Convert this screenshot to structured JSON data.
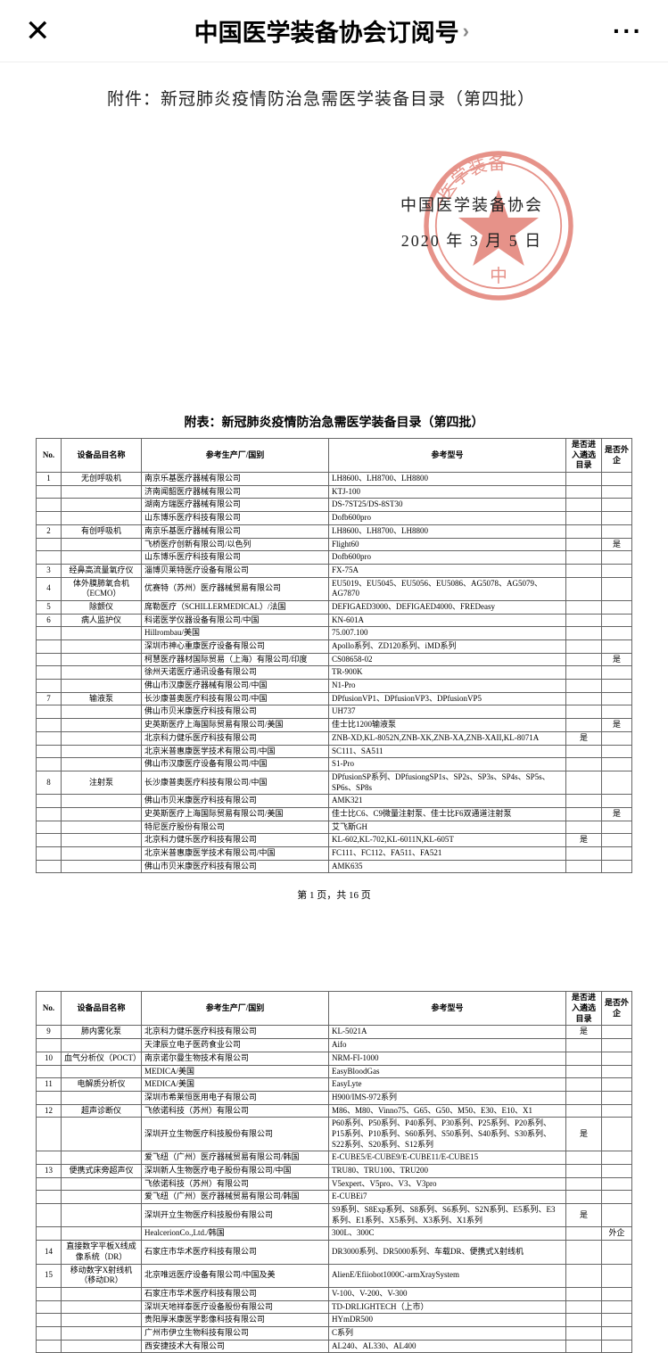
{
  "topbar": {
    "title": "中国医学装备协会订阅号"
  },
  "attachment": "附件：新冠肺炎疫情防治急需医学装备目录（第四批）",
  "stamp": {
    "org": "中国医学装备协会",
    "date": "2020 年 3 月 5 日",
    "ring_color": "#d33a2a",
    "star_color": "#d33a2a"
  },
  "table_title": "附表：新冠肺炎疫情防治急需医学装备目录（第四批）",
  "headers": {
    "no": "No.",
    "name": "设备品目名称",
    "mfr": "参考生产厂/国别",
    "model": "参考型号",
    "flag1": "是否进入遴选目录",
    "flag2": "是否外企"
  },
  "page_footer": "第 1 页，共 16 页",
  "table1_rows": [
    {
      "no": "1",
      "name": "无创呼吸机",
      "mfr": "南京乐基医疗器械有限公司",
      "model": "LH8600、LH8700、LH8800",
      "f1": "",
      "f2": ""
    },
    {
      "no": "",
      "name": "",
      "mfr": "济南闻韶医疗器械有限公司",
      "model": "KTJ-100",
      "f1": "",
      "f2": ""
    },
    {
      "no": "",
      "name": "",
      "mfr": "湖南方瑞医疗器械有限公司",
      "model": "DS-7ST25/DS-8ST30",
      "f1": "",
      "f2": ""
    },
    {
      "no": "",
      "name": "",
      "mfr": "山东博乐医疗科技有限公司",
      "model": "Dofb600pro",
      "f1": "",
      "f2": ""
    },
    {
      "no": "2",
      "name": "有创呼吸机",
      "mfr": "南京乐基医疗器械有限公司",
      "model": "LH8600、LH8700、LH8800",
      "f1": "",
      "f2": ""
    },
    {
      "no": "",
      "name": "",
      "mfr": "飞桥医疗创新有限公司/以色列",
      "model": "Flight60",
      "f1": "",
      "f2": "是"
    },
    {
      "no": "",
      "name": "",
      "mfr": "山东博乐医疗科技有限公司",
      "model": "Dofb600pro",
      "f1": "",
      "f2": ""
    },
    {
      "no": "3",
      "name": "经鼻高流量氧疗仪",
      "mfr": "淄博贝莱特医疗设备有限公司",
      "model": "FX-75A",
      "f1": "",
      "f2": ""
    },
    {
      "no": "4",
      "name": "体外膜肺氧合机（ECMO）",
      "mfr": "优赛特（苏州）医疗器械贸易有限公司",
      "model": "EU5019、EU5045、EU5056、EU5086、AG5078、AG5079、AG7870",
      "f1": "",
      "f2": ""
    },
    {
      "no": "5",
      "name": "除颤仪",
      "mfr": "席勒医疗（SCHILLERMEDICAL）/法国",
      "model": "DEFIGAED3000、DEFIGAED4000、FREDeasy",
      "f1": "",
      "f2": ""
    },
    {
      "no": "6",
      "name": "病人监护仪",
      "mfr": "科诺医学仪器设备有限公司/中国",
      "model": "KN-601A",
      "f1": "",
      "f2": ""
    },
    {
      "no": "",
      "name": "",
      "mfr": "Hillrombau/美国",
      "model": "75.007.100",
      "f1": "",
      "f2": ""
    },
    {
      "no": "",
      "name": "",
      "mfr": "深圳市神心重康医疗设备有限公司",
      "model": "Apollo系列、ZD120系列、iMD系列",
      "f1": "",
      "f2": ""
    },
    {
      "no": "",
      "name": "",
      "mfr": "柯慧医疗器材国际贸易（上海）有限公司/印度",
      "model": "CS08658-02",
      "f1": "",
      "f2": "是"
    },
    {
      "no": "",
      "name": "",
      "mfr": "徐州天诺医疗通讯设备有限公司",
      "model": "TR-900K",
      "f1": "",
      "f2": ""
    },
    {
      "no": "",
      "name": "",
      "mfr": "佛山市汉康医疗器械有限公司/中国",
      "model": "N1-Pro",
      "f1": "",
      "f2": ""
    },
    {
      "no": "7",
      "name": "输液泵",
      "mfr": "长沙康普奥医疗科技有限公司/中国",
      "model": "DPfusionVP1、DPfusionVP3、DPfusionVP5",
      "f1": "",
      "f2": ""
    },
    {
      "no": "",
      "name": "",
      "mfr": "佛山市贝米康医疗科技有限公司",
      "model": "UH737",
      "f1": "",
      "f2": ""
    },
    {
      "no": "",
      "name": "",
      "mfr": "史英斯医疗上海国际贸易有限公司/美国",
      "model": "佳士比1200输液泵",
      "f1": "",
      "f2": "是"
    },
    {
      "no": "",
      "name": "",
      "mfr": "北京科力健乐医疗科技有限公司",
      "model": "ZNB-XD,KL-8052N,ZNB-XK,ZNB-XA,ZNB-XAII,KL-8071A",
      "f1": "是",
      "f2": ""
    },
    {
      "no": "",
      "name": "",
      "mfr": "北京米普惠康医学技术有限公司/中国",
      "model": "SC111、SA511",
      "f1": "",
      "f2": ""
    },
    {
      "no": "",
      "name": "",
      "mfr": "佛山市汉康医疗设备有限公司/中国",
      "model": "S1-Pro",
      "f1": "",
      "f2": ""
    },
    {
      "no": "8",
      "name": "注射泵",
      "mfr": "长沙康普奥医疗科技有限公司/中国",
      "model": "DPfusionSP系列、DPfusiongSP1s、SP2s、SP3s、SP4s、SP5s、SP6s、SP8s",
      "f1": "",
      "f2": ""
    },
    {
      "no": "",
      "name": "",
      "mfr": "佛山市贝米康医疗科技有限公司",
      "model": "AMK321",
      "f1": "",
      "f2": ""
    },
    {
      "no": "",
      "name": "",
      "mfr": "史英斯医疗上海国际贸易有限公司/美国",
      "model": "佳士比C6、C9微量注射泵、佳士比F6双通道注射泵",
      "f1": "",
      "f2": "是"
    },
    {
      "no": "",
      "name": "",
      "mfr": "特尼医疗股份有限公司",
      "model": "艾飞斯GH",
      "f1": "",
      "f2": ""
    },
    {
      "no": "",
      "name": "",
      "mfr": "北京科力健乐医疗科技有限公司",
      "model": "KL-602,KL-702,KL-6011N,KL-605T",
      "f1": "是",
      "f2": ""
    },
    {
      "no": "",
      "name": "",
      "mfr": "北京米普惠康医学技术有限公司/中国",
      "model": "FC111、FC112、FA511、FA521",
      "f1": "",
      "f2": ""
    },
    {
      "no": "",
      "name": "",
      "mfr": "佛山市贝米康医疗科技有限公司",
      "model": "AMK635",
      "f1": "",
      "f2": ""
    }
  ],
  "table2_rows": [
    {
      "no": "9",
      "name": "肺内雾化泵",
      "mfr": "北京科力健乐医疗科技有限公司",
      "model": "KL-5021A",
      "f1": "是",
      "f2": ""
    },
    {
      "no": "",
      "name": "",
      "mfr": "天津辰立电子医药食业公司",
      "model": "Aifo",
      "f1": "",
      "f2": ""
    },
    {
      "no": "10",
      "name": "血气分析仪（POCT）",
      "mfr": "南京诺尔曼生物技术有限公司",
      "model": "NRM-FI-1000",
      "f1": "",
      "f2": ""
    },
    {
      "no": "",
      "name": "",
      "mfr": "MEDICA/美国",
      "model": "EasyBloodGas",
      "f1": "",
      "f2": ""
    },
    {
      "no": "11",
      "name": "电解质分析仪",
      "mfr": "MEDICA/美国",
      "model": "EasyLyte",
      "f1": "",
      "f2": ""
    },
    {
      "no": "",
      "name": "",
      "mfr": "深圳市希莱恒医用电子有限公司",
      "model": "H900/IMS-972系列",
      "f1": "",
      "f2": ""
    },
    {
      "no": "12",
      "name": "超声诊断仪",
      "mfr": "飞依诺科技（苏州）有限公司",
      "model": "M86、M80、Vinno75、G65、G50、M50、E30、E10、X1",
      "f1": "",
      "f2": ""
    },
    {
      "no": "",
      "name": "",
      "mfr": "深圳开立生物医疗科技股份有限公司",
      "model": "P60系列、P50系列、P40系列、P30系列、P25系列、P20系列、P15系列、P10系列、S60系列、S50系列、S40系列、S30系列、S22系列、S20系列、S12系列",
      "f1": "是",
      "f2": ""
    },
    {
      "no": "",
      "name": "",
      "mfr": "爱飞纽（广州）医疗器械贸易有限公司/韩国",
      "model": "E-CUBE5/E-CUBE9/E-CUBE11/E-CUBE15",
      "f1": "",
      "f2": ""
    },
    {
      "no": "13",
      "name": "便携式床旁超声仪",
      "mfr": "深圳新人生物医疗电子股份有限公司/中国",
      "model": "TRU80、TRU100、TRU200",
      "f1": "",
      "f2": ""
    },
    {
      "no": "",
      "name": "",
      "mfr": "飞依诺科技（苏州）有限公司",
      "model": "V5expert、V5pro、V3、V3pro",
      "f1": "",
      "f2": ""
    },
    {
      "no": "",
      "name": "",
      "mfr": "爱飞纽（广州）医疗器械贸易有限公司/韩国",
      "model": "E-CUBEi7",
      "f1": "",
      "f2": ""
    },
    {
      "no": "",
      "name": "",
      "mfr": "深圳开立生物医疗科技股份有限公司",
      "model": "S9系列、S8Exp系列、S8系列、S6系列、S2N系列、E5系列、E3系列、E1系列、X5系列、X3系列、X1系列",
      "f1": "是",
      "f2": ""
    },
    {
      "no": "",
      "name": "",
      "mfr": "HealcerionCo.,Ltd./韩国",
      "model": "300L、300C",
      "f1": "",
      "f2": "外企"
    },
    {
      "no": "14",
      "name": "直接数字平板X线成像系统（DR）",
      "mfr": "石家庄市华术医疗科技有限公司",
      "model": "DR3000系列、DR5000系列、车载DR、便携式X射线机",
      "f1": "",
      "f2": ""
    },
    {
      "no": "15",
      "name": "移动数字X射线机（移动DR）",
      "mfr": "北京唯远医疗设备有限公司/中国及美",
      "model": "AlienE/Efiiobot1000C-armXraySystem",
      "f1": "",
      "f2": ""
    },
    {
      "no": "",
      "name": "",
      "mfr": "石家庄市华术医疗科技有限公司",
      "model": "V-100、V-200、V-300",
      "f1": "",
      "f2": ""
    },
    {
      "no": "",
      "name": "",
      "mfr": "深圳天地祥泰医疗设备股份有限公司",
      "model": "TD-DRLIGHTECH（上市）",
      "f1": "",
      "f2": ""
    },
    {
      "no": "",
      "name": "",
      "mfr": "贵阳厚米康医学影像科技有限公司",
      "model": "HYmDR500",
      "f1": "",
      "f2": ""
    },
    {
      "no": "",
      "name": "",
      "mfr": "广州市伊立生物科技有限公司",
      "model": "C系列",
      "f1": "",
      "f2": ""
    },
    {
      "no": "",
      "name": "",
      "mfr": "西安捷技术大有限公司",
      "model": "AL240、AL330、AL400",
      "f1": "",
      "f2": ""
    }
  ]
}
